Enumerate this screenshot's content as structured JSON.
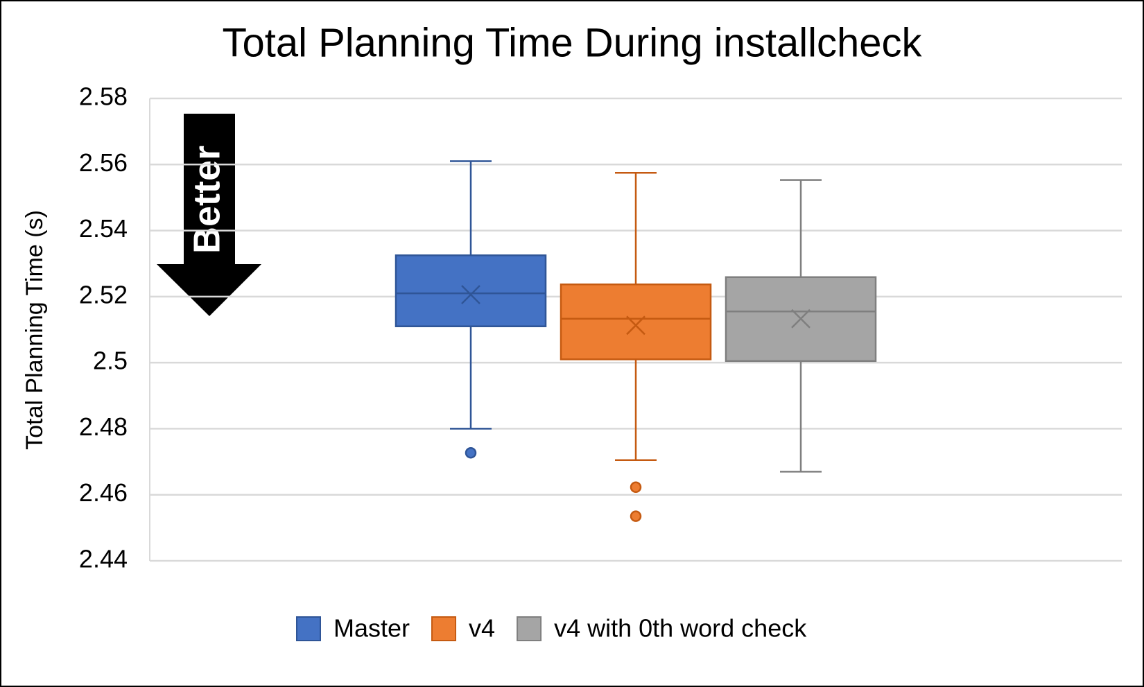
{
  "chart_data": {
    "type": "box",
    "title": "Total Planning Time During installcheck",
    "y_label": "Total Planning Time (s)",
    "annotation": "Better",
    "ylim": [
      2.44,
      2.58
    ],
    "yticks": [
      2.44,
      2.46,
      2.48,
      2.5,
      2.52,
      2.54,
      2.56,
      2.58
    ],
    "grid": true,
    "legend": "bottom",
    "series": [
      {
        "name": "Master",
        "color": "#4472c4",
        "edge_color": "#2f5597",
        "min": 2.48,
        "q1": 2.511,
        "median": 2.521,
        "q3": 2.5325,
        "max": 2.561,
        "mean": 2.5206,
        "outliers": [
          2.4727
        ]
      },
      {
        "name": "v4",
        "color": "#ed7d31",
        "edge_color": "#c55a11",
        "min": 2.4705,
        "q1": 2.501,
        "median": 2.5133,
        "q3": 2.5237,
        "max": 2.5575,
        "mean": 2.5113,
        "outliers": [
          2.4623,
          2.4535
        ]
      },
      {
        "name": "v4 with 0th word check",
        "color": "#a5a5a5",
        "edge_color": "#7f7f7f",
        "min": 2.467,
        "q1": 2.5005,
        "median": 2.5155,
        "q3": 2.5259,
        "max": 2.5553,
        "mean": 2.5133,
        "outliers": []
      }
    ]
  }
}
